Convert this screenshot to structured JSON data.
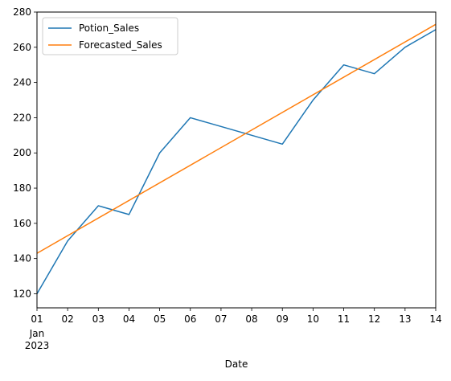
{
  "chart_data": {
    "type": "line",
    "title": "",
    "xlabel": "Date",
    "ylabel": "",
    "x_tick_labels": [
      "01",
      "02",
      "03",
      "04",
      "05",
      "06",
      "07",
      "08",
      "09",
      "10",
      "11",
      "12",
      "13",
      "14"
    ],
    "x_sub_labels": [
      "Jan",
      "2023"
    ],
    "x_dates": [
      "2023-01-01",
      "2023-01-02",
      "2023-01-03",
      "2023-01-04",
      "2023-01-05",
      "2023-01-06",
      "2023-01-07",
      "2023-01-08",
      "2023-01-09",
      "2023-01-10",
      "2023-01-11",
      "2023-01-12",
      "2023-01-13",
      "2023-01-14"
    ],
    "xlim": [
      "2023-01-01",
      "2023-01-14"
    ],
    "ylim": [
      112,
      280
    ],
    "y_ticks": [
      120,
      140,
      160,
      180,
      200,
      220,
      240,
      260,
      280
    ],
    "grid": false,
    "legend_position": "upper left",
    "series": [
      {
        "name": "Potion_Sales",
        "color": "#1f77b4",
        "x": [
          "2023-01-01",
          "2023-01-02",
          "2023-01-03",
          "2023-01-04",
          "2023-01-05",
          "2023-01-06",
          "2023-01-08",
          "2023-01-09",
          "2023-01-10",
          "2023-01-11",
          "2023-01-12",
          "2023-01-13",
          "2023-01-14"
        ],
        "values": [
          120,
          150,
          170,
          165,
          200,
          220,
          210,
          205,
          230,
          250,
          245,
          260,
          270
        ]
      },
      {
        "name": "Forecasted_Sales",
        "color": "#ff7f0e",
        "x": [
          "2023-01-01",
          "2023-01-14"
        ],
        "values": [
          143,
          273
        ]
      }
    ]
  }
}
